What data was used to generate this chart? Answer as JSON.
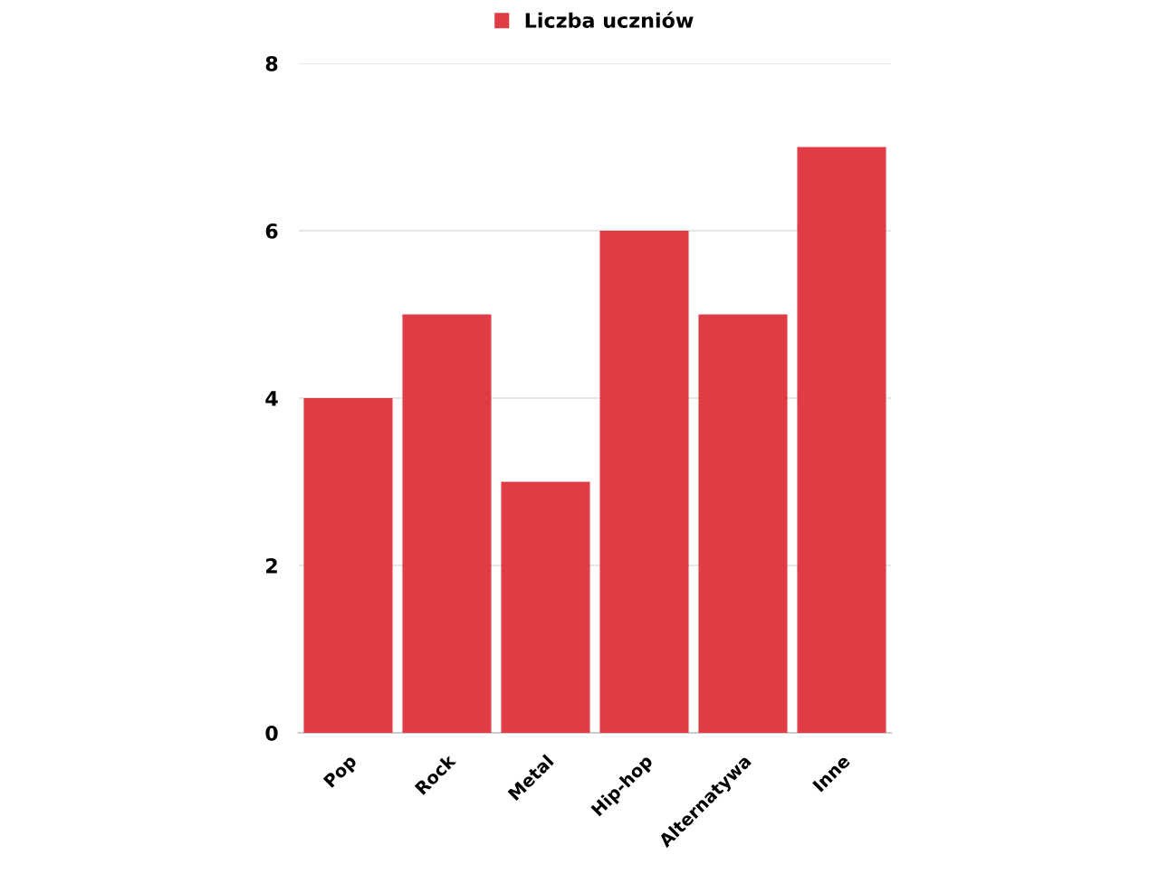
{
  "chart_data": {
    "type": "bar",
    "categories": [
      "Pop",
      "Rock",
      "Metal",
      "Hip-hop",
      "Alternatywa",
      "Inne"
    ],
    "series": [
      {
        "name": "Liczba uczniów",
        "color": "#e03c45",
        "values": [
          4,
          5,
          3,
          6,
          5,
          7
        ]
      }
    ],
    "ylim": [
      0,
      8
    ],
    "yticks": [
      0,
      2,
      4,
      6,
      8
    ],
    "grid": "y",
    "legend": "top"
  }
}
